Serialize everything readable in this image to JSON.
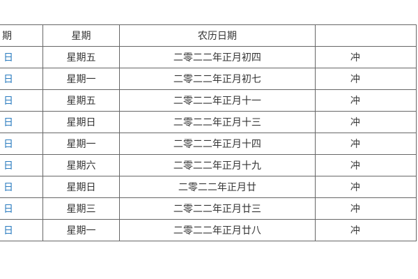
{
  "table": {
    "headers": [
      "期",
      "星期",
      "农历日期",
      ""
    ],
    "rows": [
      {
        "date": "日",
        "weekday": "星期五",
        "lunar": "二零二二年正月初四",
        "clash": "冲"
      },
      {
        "date": "日",
        "weekday": "星期一",
        "lunar": "二零二二年正月初七",
        "clash": "冲"
      },
      {
        "date": "日",
        "weekday": "星期五",
        "lunar": "二零二二年正月十一",
        "clash": "冲"
      },
      {
        "date": "日",
        "weekday": "星期日",
        "lunar": "二零二二年正月十三",
        "clash": "冲"
      },
      {
        "date": "日",
        "weekday": "星期一",
        "lunar": "二零二二年正月十四",
        "clash": "冲"
      },
      {
        "date": "日",
        "weekday": "星期六",
        "lunar": "二零二二年正月十九",
        "clash": "冲"
      },
      {
        "date": "日",
        "weekday": "星期日",
        "lunar": "二零二二年正月廿",
        "clash": "冲"
      },
      {
        "date": "日",
        "weekday": "星期三",
        "lunar": "二零二二年正月廿三",
        "clash": "冲"
      },
      {
        "date": "日",
        "weekday": "星期一",
        "lunar": "二零二二年正月廿八",
        "clash": "冲"
      }
    ],
    "colors": {
      "date_link": "#2a7bbf",
      "text": "#333333",
      "border": "#666666"
    }
  }
}
